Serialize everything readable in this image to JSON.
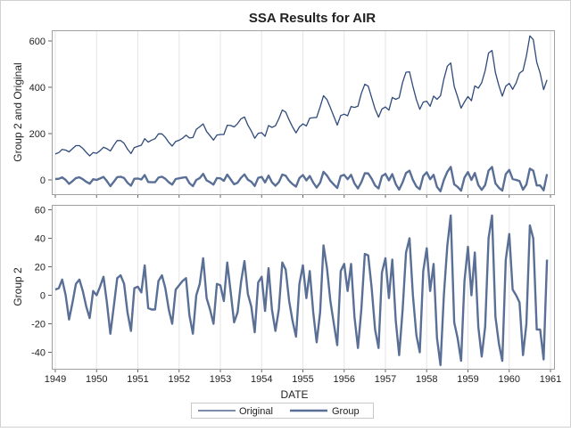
{
  "chart_data": [
    {
      "type": "line",
      "title": "SSA Results for AIR",
      "ylabel": "Group 2 and Original",
      "ylim": [
        -60,
        640
      ],
      "yticks": [
        0,
        200,
        400,
        600
      ],
      "xlim": [
        1949,
        1961
      ],
      "xticks": [
        1949,
        1950,
        1951,
        1952,
        1953,
        1954,
        1955,
        1956,
        1957,
        1958,
        1959,
        1960,
        1961
      ],
      "grid": "vertical",
      "series_ref": [
        "Original",
        "Group"
      ]
    },
    {
      "type": "line",
      "xlabel": "DATE",
      "ylabel": "Group 2",
      "ylim": [
        -50,
        62
      ],
      "yticks": [
        -40,
        -20,
        0,
        20,
        40,
        60
      ],
      "xlim": [
        1949,
        1961
      ],
      "xticks": [
        1949,
        1950,
        1951,
        1952,
        1953,
        1954,
        1955,
        1956,
        1957,
        1958,
        1959,
        1960,
        1961
      ],
      "grid": "vertical",
      "series_ref": [
        "Group"
      ]
    }
  ],
  "x_start": "1949-01",
  "x_frequency": "monthly",
  "series": {
    "original": {
      "name": "Original",
      "color": "#2f4a7a",
      "values": [
        112,
        118,
        132,
        129,
        121,
        135,
        148,
        148,
        136,
        119,
        104,
        118,
        115,
        126,
        141,
        135,
        125,
        149,
        170,
        170,
        158,
        133,
        114,
        140,
        145,
        150,
        178,
        163,
        172,
        178,
        199,
        199,
        184,
        162,
        146,
        166,
        171,
        180,
        193,
        181,
        183,
        218,
        230,
        242,
        209,
        191,
        172,
        194,
        196,
        196,
        236,
        235,
        229,
        243,
        264,
        272,
        237,
        211,
        180,
        201,
        204,
        188,
        235,
        227,
        234,
        264,
        302,
        293,
        259,
        229,
        203,
        229,
        242,
        233,
        267,
        269,
        270,
        315,
        364,
        347,
        312,
        274,
        237,
        278,
        284,
        277,
        317,
        313,
        318,
        374,
        413,
        405,
        355,
        306,
        271,
        306,
        315,
        301,
        356,
        348,
        355,
        422,
        465,
        467,
        404,
        347,
        305,
        336,
        340,
        318,
        362,
        348,
        363,
        435,
        491,
        505,
        404,
        359,
        310,
        337,
        360,
        342,
        406,
        396,
        420,
        472,
        548,
        559,
        463,
        407,
        362,
        405,
        417,
        391,
        419,
        461,
        472,
        535,
        622,
        606,
        508,
        461,
        390,
        432
      ]
    },
    "group": {
      "name": "Group",
      "color": "#5a6f96",
      "values": [
        4,
        5,
        11,
        0,
        -17,
        -5,
        8,
        11,
        3,
        -8,
        -16,
        3,
        0,
        6,
        13,
        -5,
        -27,
        -8,
        12,
        14,
        8,
        -12,
        -25,
        5,
        6,
        2,
        21,
        -9,
        -10,
        -10,
        10,
        14,
        5,
        -10,
        -20,
        4,
        7,
        10,
        12,
        -14,
        -27,
        0,
        8,
        26,
        -2,
        -10,
        -20,
        8,
        7,
        -4,
        23,
        2,
        -19,
        -12,
        9,
        24,
        1,
        -8,
        -26,
        9,
        13,
        -11,
        19,
        -10,
        -25,
        -10,
        23,
        18,
        -4,
        -18,
        -29,
        8,
        21,
        -2,
        17,
        -12,
        -33,
        -12,
        35,
        19,
        -4,
        -20,
        -35,
        17,
        22,
        3,
        22,
        -15,
        -37,
        -10,
        29,
        28,
        5,
        -24,
        -37,
        16,
        26,
        -2,
        25,
        -18,
        -42,
        -10,
        30,
        40,
        0,
        -28,
        -40,
        17,
        33,
        3,
        22,
        -30,
        -49,
        0,
        35,
        56,
        -19,
        -30,
        -46,
        10,
        34,
        0,
        30,
        -22,
        -43,
        -22,
        40,
        56,
        -15,
        -34,
        -46,
        25,
        43,
        4,
        0,
        -5,
        -42,
        -20,
        49,
        40,
        -24,
        -24,
        -45,
        25
      ]
    }
  },
  "legend": {
    "placement": "bottom",
    "items": [
      "Original",
      "Group"
    ]
  }
}
